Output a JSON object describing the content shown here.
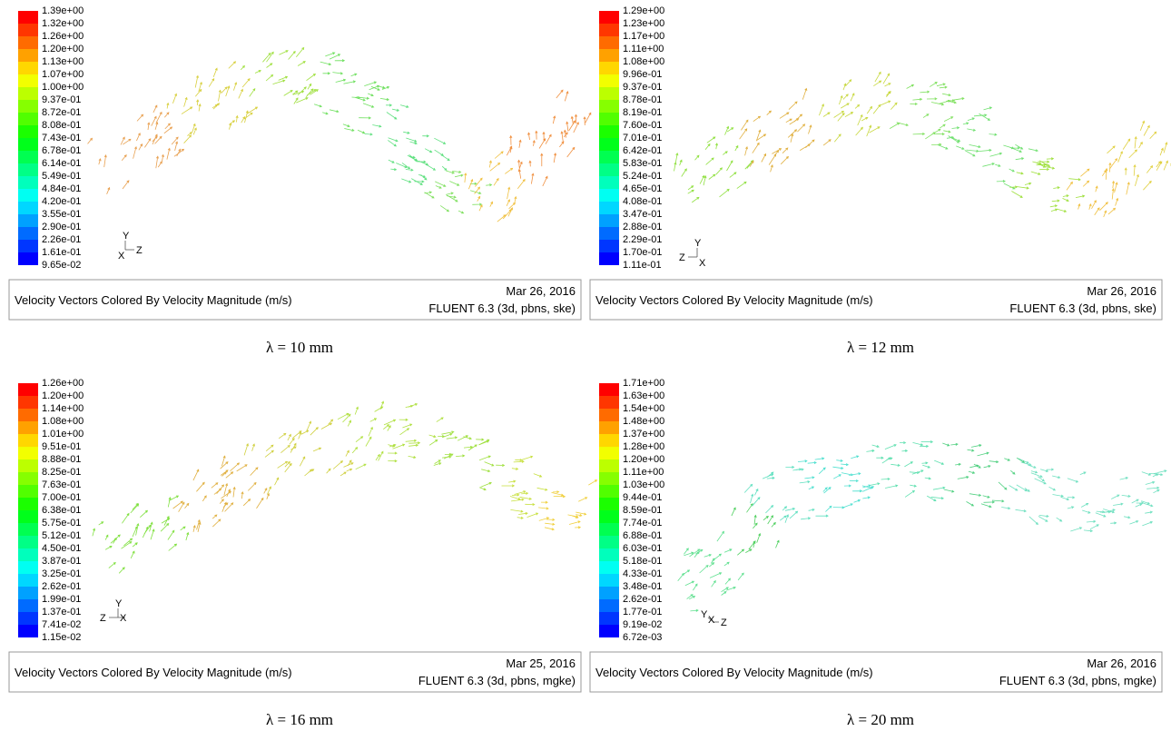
{
  "panels": [
    {
      "colorbar_labels": [
        "1.39e+00",
        "1.32e+00",
        "1.26e+00",
        "1.20e+00",
        "1.13e+00",
        "1.07e+00",
        "1.00e+00",
        "9.37e-01",
        "8.72e-01",
        "8.08e-01",
        "7.43e-01",
        "6.78e-01",
        "6.14e-01",
        "5.49e-01",
        "4.84e-01",
        "4.20e-01",
        "3.55e-01",
        "2.90e-01",
        "2.26e-01",
        "1.61e-01",
        "9.65e-02"
      ],
      "axes": {
        "y": "Y",
        "x": "X",
        "z": "Z"
      },
      "caption": "Velocity Vectors Colored By Velocity Magnitude (m/s)",
      "date": "Mar 26, 2016",
      "solver": "FLUENT 6.3 (3d, pbns, ske)",
      "subcaption": "λ = 10 mm"
    },
    {
      "colorbar_labels": [
        "1.29e+00",
        "1.23e+00",
        "1.17e+00",
        "1.11e+00",
        "1.08e+00",
        "9.96e-01",
        "9.37e-01",
        "8.78e-01",
        "8.19e-01",
        "7.60e-01",
        "7.01e-01",
        "6.42e-01",
        "5.83e-01",
        "5.24e-01",
        "4.65e-01",
        "4.08e-01",
        "3.47e-01",
        "2.88e-01",
        "2.29e-01",
        "1.70e-01",
        "1.11e-01"
      ],
      "axes": {
        "y": "Y",
        "x": "X",
        "z": "Z"
      },
      "caption": "Velocity Vectors Colored By Velocity Magnitude (m/s)",
      "date": "Mar 26, 2016",
      "solver": "FLUENT 6.3 (3d, pbns, ske)",
      "subcaption": "λ = 12 mm"
    },
    {
      "colorbar_labels": [
        "1.26e+00",
        "1.20e+00",
        "1.14e+00",
        "1.08e+00",
        "1.01e+00",
        "9.51e-01",
        "8.88e-01",
        "8.25e-01",
        "7.63e-01",
        "7.00e-01",
        "6.38e-01",
        "5.75e-01",
        "5.12e-01",
        "4.50e-01",
        "3.87e-01",
        "3.25e-01",
        "2.62e-01",
        "1.99e-01",
        "1.37e-01",
        "7.41e-02",
        "1.15e-02"
      ],
      "axes": {
        "y": "Y",
        "x": "X",
        "z": "Z"
      },
      "caption": "Velocity Vectors Colored By Velocity Magnitude (m/s)",
      "date": "Mar 25, 2016",
      "solver": "FLUENT 6.3 (3d, pbns, mgke)",
      "subcaption": "λ = 16 mm"
    },
    {
      "colorbar_labels": [
        "1.71e+00",
        "1.63e+00",
        "1.54e+00",
        "1.48e+00",
        "1.37e+00",
        "1.28e+00",
        "1.20e+00",
        "1.11e+00",
        "1.03e+00",
        "9.44e-01",
        "8.59e-01",
        "7.74e-01",
        "6.88e-01",
        "6.03e-01",
        "5.18e-01",
        "4.33e-01",
        "3.48e-01",
        "2.62e-01",
        "1.77e-01",
        "9.19e-02",
        "6.72e-03"
      ],
      "axes": {
        "y": "Y",
        "x": "X",
        "z": "Z"
      },
      "caption": "Velocity Vectors Colored By Velocity Magnitude (m/s)",
      "date": "Mar 26, 2016",
      "solver": "FLUENT 6.3 (3d, pbns, mgke)",
      "subcaption": "λ = 20 mm"
    }
  ]
}
